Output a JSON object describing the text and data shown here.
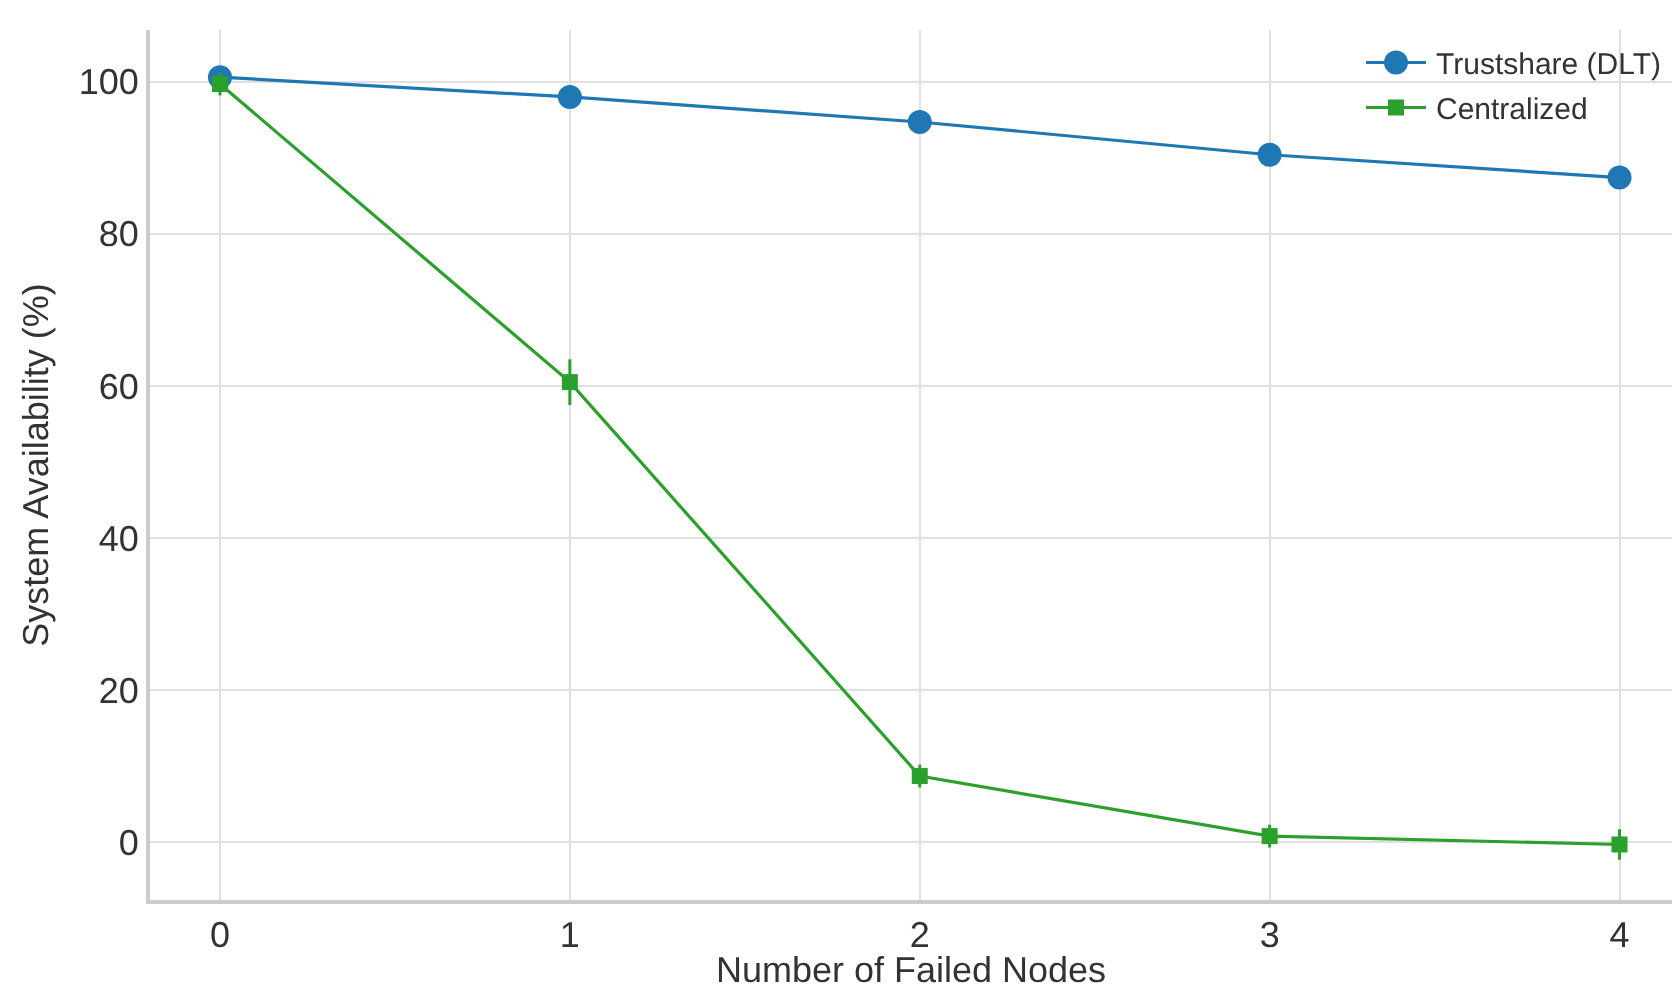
{
  "chart_data": {
    "type": "line",
    "xlabel": "Number of Failed Nodes",
    "ylabel": "System Availability (%)",
    "x": [
      0,
      1,
      2,
      3,
      4
    ],
    "series": [
      {
        "name": "Trustshare (DLT)",
        "color": "#1f77b4",
        "marker": "circle",
        "values": [
          100.6,
          98.0,
          94.7,
          90.4,
          87.4
        ],
        "errors": [
          1,
          0.5,
          0.5,
          0.5,
          0.5
        ]
      },
      {
        "name": "Centralized",
        "color": "#2ca02c",
        "marker": "square",
        "values": [
          99.7,
          60.5,
          8.7,
          0.8,
          -0.3
        ],
        "errors": [
          1.5,
          3,
          1.5,
          1.5,
          2
        ]
      }
    ],
    "xlim": [
      -0.2,
      4.15
    ],
    "xticks": [
      0,
      1,
      2,
      3,
      4
    ],
    "ylim": [
      -7.6,
      106.8
    ],
    "yticks": [
      0,
      20,
      40,
      60,
      80,
      100
    ],
    "grid": true,
    "legend": "top right"
  }
}
